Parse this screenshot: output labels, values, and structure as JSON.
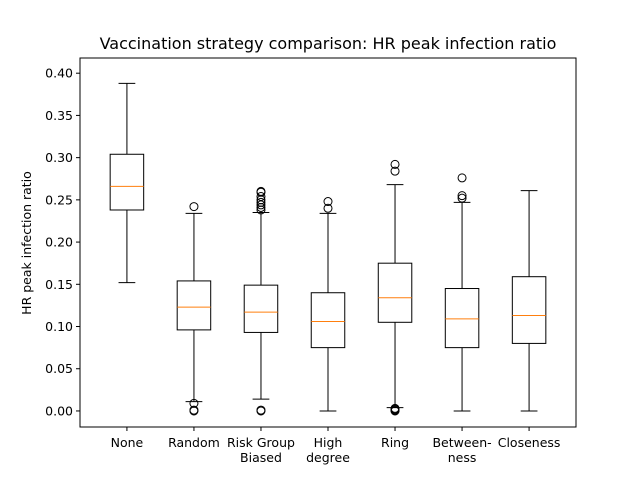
{
  "chart_data": {
    "type": "box",
    "title": "Vaccination strategy comparison: HR peak infection ratio",
    "xlabel": "",
    "ylabel": "HR peak infection ratio",
    "ylim": [
      -0.019,
      0.418
    ],
    "yticks": [
      0.0,
      0.05,
      0.1,
      0.15,
      0.2,
      0.25,
      0.3,
      0.35,
      0.4
    ],
    "ytick_labels": [
      "0.00",
      "0.05",
      "0.10",
      "0.15",
      "0.20",
      "0.25",
      "0.30",
      "0.35",
      "0.40"
    ],
    "grid": false,
    "colors": {
      "box": "#000000",
      "median": "#ff7f0e"
    },
    "categories": [
      [
        "None"
      ],
      [
        "Random"
      ],
      [
        "Risk Group",
        "Biased"
      ],
      [
        "High",
        "degree"
      ],
      [
        "Ring"
      ],
      [
        "Between-",
        "ness"
      ],
      [
        "Closeness"
      ]
    ],
    "boxes": [
      {
        "whisker_low": 0.152,
        "q1": 0.238,
        "median": 0.266,
        "q3": 0.304,
        "whisker_high": 0.388,
        "outliers": []
      },
      {
        "whisker_low": 0.011,
        "q1": 0.096,
        "median": 0.123,
        "q3": 0.154,
        "whisker_high": 0.234,
        "outliers": [
          0.0,
          0.001,
          0.009,
          0.242
        ]
      },
      {
        "whisker_low": 0.014,
        "q1": 0.093,
        "median": 0.117,
        "q3": 0.149,
        "whisker_high": 0.235,
        "outliers": [
          0.0,
          0.001,
          0.238,
          0.241,
          0.244,
          0.247,
          0.25,
          0.254,
          0.259,
          0.26
        ]
      },
      {
        "whisker_low": 0.0,
        "q1": 0.075,
        "median": 0.106,
        "q3": 0.14,
        "whisker_high": 0.234,
        "outliers": [
          0.24,
          0.248
        ]
      },
      {
        "whisker_low": 0.004,
        "q1": 0.105,
        "median": 0.134,
        "q3": 0.175,
        "whisker_high": 0.268,
        "outliers": [
          0.0,
          0.001,
          0.002,
          0.003,
          0.284,
          0.292
        ]
      },
      {
        "whisker_low": 0.0,
        "q1": 0.075,
        "median": 0.109,
        "q3": 0.145,
        "whisker_high": 0.247,
        "outliers": [
          0.252,
          0.255,
          0.276
        ]
      },
      {
        "whisker_low": 0.0,
        "q1": 0.08,
        "median": 0.113,
        "q3": 0.159,
        "whisker_high": 0.261,
        "outliers": []
      }
    ]
  }
}
